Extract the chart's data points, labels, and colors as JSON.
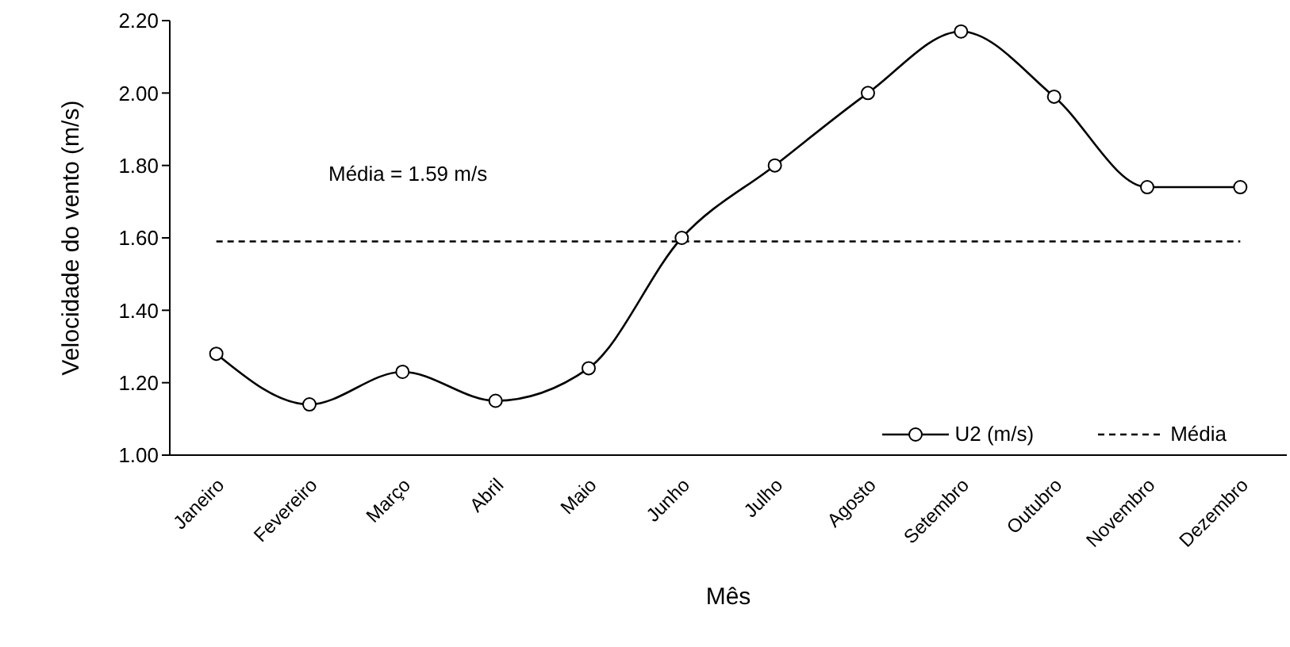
{
  "chart_data": {
    "type": "line",
    "xlabel": "Mês",
    "ylabel": "Velocidade do vento (m/s)",
    "categories": [
      "Janeiro",
      "Fevereiro",
      "Março",
      "Abril",
      "Maio",
      "Junho",
      "Julho",
      "Agosto",
      "Setembro",
      "Outubro",
      "Novembro",
      "Dezembro"
    ],
    "series": [
      {
        "name": "U2 (m/s)",
        "color": "#000000",
        "marker": "circle",
        "line_style": "solid",
        "values": [
          1.28,
          1.14,
          1.23,
          1.15,
          1.24,
          1.6,
          1.8,
          2.0,
          2.17,
          1.99,
          1.74,
          1.74
        ]
      },
      {
        "name": "Média",
        "color": "#000000",
        "marker": "none",
        "line_style": "dashed",
        "values": [
          1.59,
          1.59,
          1.59,
          1.59,
          1.59,
          1.59,
          1.59,
          1.59,
          1.59,
          1.59,
          1.59,
          1.59
        ]
      }
    ],
    "annotations": [
      "Média = 1.59 m/s"
    ],
    "ylim": [
      1.0,
      2.2
    ],
    "yticks": [
      {
        "value": 1.0,
        "label": "1.00"
      },
      {
        "value": 1.2,
        "label": "1.20"
      },
      {
        "value": 1.4,
        "label": "1.40"
      },
      {
        "value": 1.6,
        "label": "1.60"
      },
      {
        "value": 1.8,
        "label": "1.80"
      },
      {
        "value": 2.0,
        "label": "2.00"
      },
      {
        "value": 2.2,
        "label": "2.20"
      }
    ],
    "grid": false,
    "legend": "bottom right"
  }
}
